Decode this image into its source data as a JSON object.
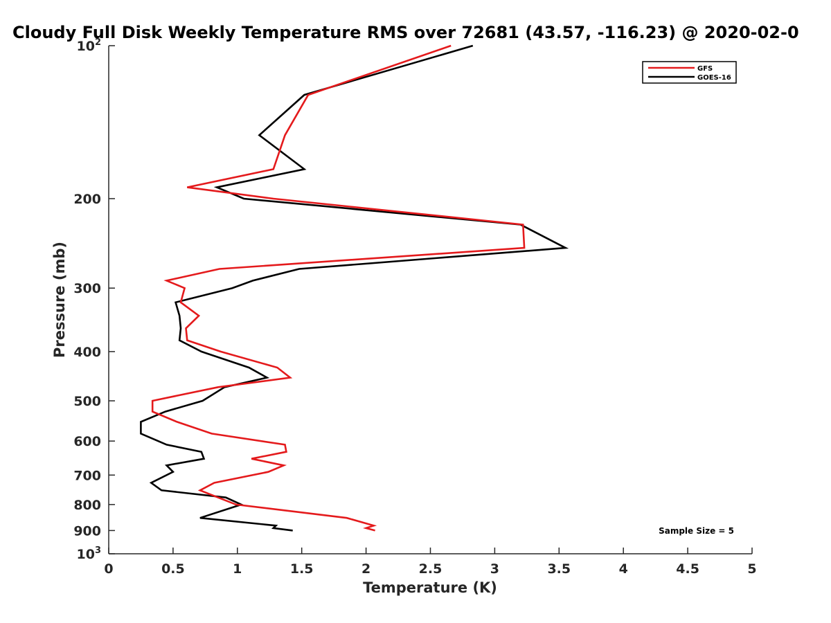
{
  "chart_data": {
    "type": "line",
    "title": "Cloudy Full Disk Weekly Temperature RMS over 72681 (43.57, -116.23) @ 2020-02-0",
    "xlabel": "Temperature (K)",
    "ylabel": "Pressure (mb)",
    "xlim": [
      0,
      5
    ],
    "ylim": [
      100,
      1000
    ],
    "yscale": "log",
    "y_reversed": true,
    "x_ticks": [
      "0",
      "0.5",
      "1",
      "1.5",
      "2",
      "2.5",
      "3",
      "3.5",
      "4",
      "4.5",
      "5"
    ],
    "x_tick_values": [
      0,
      0.5,
      1,
      1.5,
      2,
      2.5,
      3,
      3.5,
      4,
      4.5,
      5
    ],
    "y_ticks": [
      {
        "value": 100,
        "base": "10",
        "exp": "2"
      },
      {
        "value": 200,
        "label": "200"
      },
      {
        "value": 300,
        "label": "300"
      },
      {
        "value": 400,
        "label": "400"
      },
      {
        "value": 500,
        "label": "500"
      },
      {
        "value": 600,
        "label": "600"
      },
      {
        "value": 700,
        "label": "700"
      },
      {
        "value": 800,
        "label": "800"
      },
      {
        "value": 900,
        "label": "900"
      },
      {
        "value": 1000,
        "base": "10",
        "exp": "3"
      }
    ],
    "grid": false,
    "legend_position": "top-right",
    "annotation": "Sample Size = 5",
    "series": [
      {
        "name": "GFS",
        "color": "#e41a1c",
        "points": [
          [
            2.66,
            100
          ],
          [
            1.55,
            125
          ],
          [
            1.37,
            150
          ],
          [
            1.28,
            175
          ],
          [
            0.61,
            190
          ],
          [
            1.28,
            200
          ],
          [
            3.22,
            225
          ],
          [
            3.23,
            250
          ],
          [
            0.86,
            275
          ],
          [
            0.45,
            290
          ],
          [
            0.59,
            300
          ],
          [
            0.56,
            320
          ],
          [
            0.7,
            340
          ],
          [
            0.6,
            360
          ],
          [
            0.61,
            380
          ],
          [
            0.87,
            400
          ],
          [
            1.31,
            430
          ],
          [
            1.41,
            450
          ],
          [
            0.85,
            470
          ],
          [
            0.34,
            500
          ],
          [
            0.34,
            525
          ],
          [
            0.53,
            550
          ],
          [
            0.8,
            580
          ],
          [
            1.37,
            610
          ],
          [
            1.38,
            630
          ],
          [
            1.11,
            650
          ],
          [
            1.36,
            670
          ],
          [
            1.24,
            690
          ],
          [
            0.82,
            725
          ],
          [
            0.71,
            750
          ],
          [
            0.85,
            775
          ],
          [
            0.99,
            800
          ],
          [
            1.85,
            850
          ],
          [
            2.06,
            880
          ],
          [
            2.0,
            890
          ],
          [
            2.07,
            900
          ]
        ]
      },
      {
        "name": "GOES-16",
        "color": "#000000",
        "points": [
          [
            2.83,
            100
          ],
          [
            1.52,
            125
          ],
          [
            1.17,
            150
          ],
          [
            1.52,
            175
          ],
          [
            0.84,
            190
          ],
          [
            1.05,
            200
          ],
          [
            3.2,
            225
          ],
          [
            3.55,
            250
          ],
          [
            1.48,
            275
          ],
          [
            1.12,
            290
          ],
          [
            0.96,
            300
          ],
          [
            0.52,
            320
          ],
          [
            0.55,
            340
          ],
          [
            0.56,
            360
          ],
          [
            0.55,
            380
          ],
          [
            0.72,
            400
          ],
          [
            1.09,
            430
          ],
          [
            1.23,
            450
          ],
          [
            0.9,
            470
          ],
          [
            0.73,
            500
          ],
          [
            0.44,
            525
          ],
          [
            0.25,
            550
          ],
          [
            0.25,
            580
          ],
          [
            0.45,
            610
          ],
          [
            0.72,
            630
          ],
          [
            0.74,
            650
          ],
          [
            0.45,
            670
          ],
          [
            0.5,
            690
          ],
          [
            0.33,
            725
          ],
          [
            0.41,
            750
          ],
          [
            0.91,
            775
          ],
          [
            1.03,
            800
          ],
          [
            0.71,
            850
          ],
          [
            1.3,
            880
          ],
          [
            1.28,
            890
          ],
          [
            1.43,
            900
          ]
        ]
      }
    ]
  }
}
